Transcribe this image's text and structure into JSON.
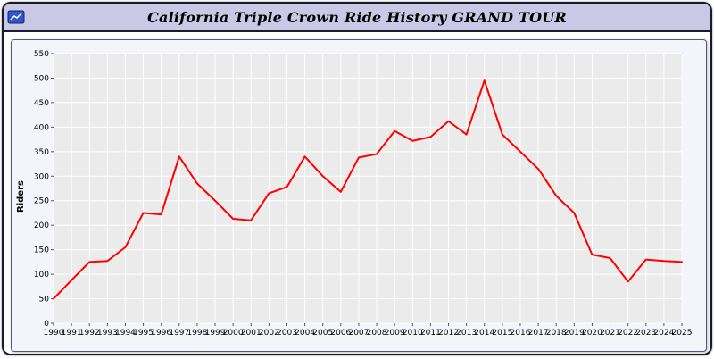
{
  "header": {
    "title": "California Triple Crown Ride History GRAND TOUR",
    "icon": "chart-app-icon"
  },
  "chart_data": {
    "type": "line",
    "title": "California Triple Crown Ride History GRAND TOUR",
    "xlabel": "",
    "ylabel": "Riders",
    "ylim": [
      0,
      550
    ],
    "ytick_step": 50,
    "grid": true,
    "plot_bg": "#ebebeb",
    "grid_color": "#ffffff",
    "x": [
      1990,
      1991,
      1992,
      1993,
      1994,
      1995,
      1996,
      1997,
      1998,
      1999,
      2000,
      2001,
      2002,
      2003,
      2004,
      2005,
      2006,
      2007,
      2008,
      2009,
      2010,
      2011,
      2012,
      2013,
      2014,
      2015,
      2016,
      2017,
      2018,
      2019,
      2020,
      2021,
      2022,
      2023,
      2024,
      2025
    ],
    "series": [
      {
        "name": "Riders",
        "color": "#ff0000",
        "values": [
          50,
          88,
          125,
          127,
          155,
          225,
          222,
          340,
          285,
          250,
          213,
          210,
          265,
          278,
          340,
          300,
          268,
          338,
          345,
          392,
          372,
          380,
          412,
          385,
          495,
          385,
          350,
          315,
          260,
          225,
          140,
          133,
          85,
          130,
          127,
          125
        ]
      }
    ]
  }
}
